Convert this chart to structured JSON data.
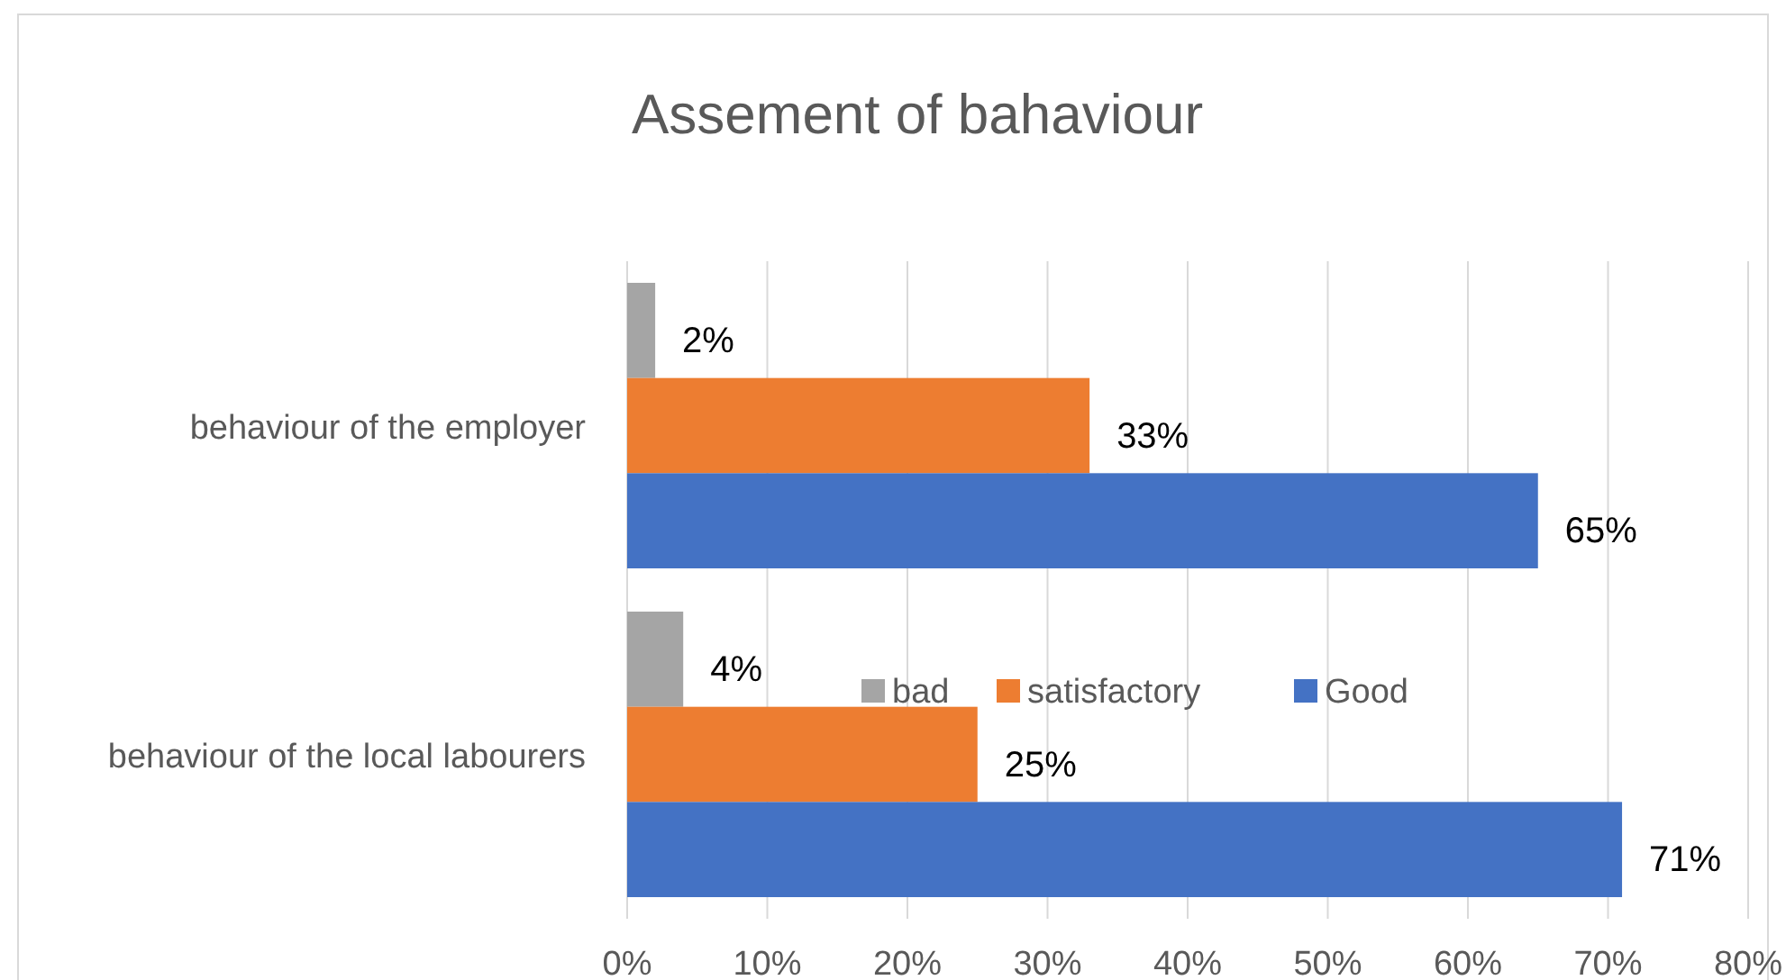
{
  "chart_data": {
    "type": "bar",
    "orientation": "horizontal",
    "title": "Assement of bahaviour",
    "categories": [
      "behaviour of the employer",
      "behaviour of the local labourers"
    ],
    "series": [
      {
        "name": "bad",
        "color": "#a5a5a5",
        "values": [
          2,
          4
        ],
        "value_labels": [
          "2%",
          "4%"
        ]
      },
      {
        "name": "satisfactory",
        "color": "#ed7d31",
        "values": [
          33,
          25
        ],
        "value_labels": [
          "33%",
          "25%"
        ]
      },
      {
        "name": "Good",
        "color": "#4472c4",
        "values": [
          65,
          71
        ],
        "value_labels": [
          "65%",
          "71%"
        ]
      }
    ],
    "xlim": [
      0,
      80
    ],
    "xticks": [
      {
        "value": 0,
        "label": "0%"
      },
      {
        "value": 10,
        "label": "10%"
      },
      {
        "value": 20,
        "label": "20%"
      },
      {
        "value": 30,
        "label": "30%"
      },
      {
        "value": 40,
        "label": "40%"
      },
      {
        "value": 50,
        "label": "50%"
      },
      {
        "value": 60,
        "label": "60%"
      },
      {
        "value": 70,
        "label": "70%"
      },
      {
        "value": 80,
        "label": "80%"
      }
    ],
    "grid": "x",
    "legend": "center"
  }
}
